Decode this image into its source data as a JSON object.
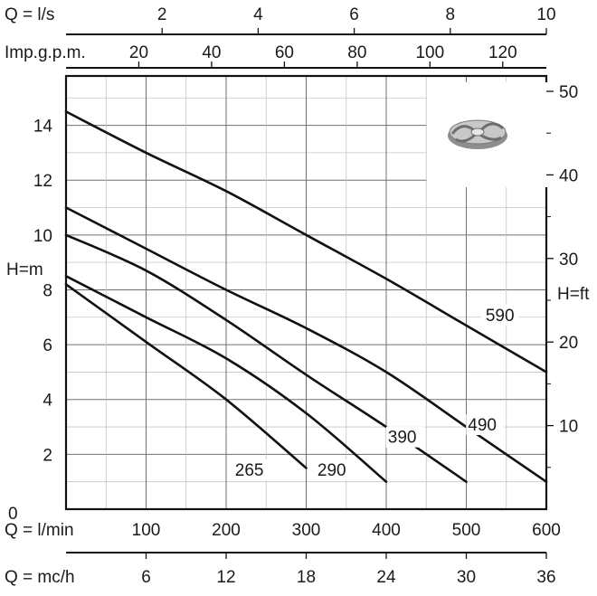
{
  "chart_data": {
    "type": "line",
    "x_unit_label": "Q = l/min",
    "y_left_label": "H=m",
    "y_right_label": "H=ft",
    "xlim": [
      0,
      600
    ],
    "ylim": [
      0,
      15.8
    ],
    "grid": true,
    "top_axes": [
      {
        "label": "Q = l/s",
        "ticks": [
          "2",
          "4",
          "6",
          "8",
          "10"
        ],
        "tick_values": [
          2,
          4,
          6,
          8,
          10
        ],
        "factor_per_l_min": 0.0166667
      },
      {
        "label": "Imp.g.p.m.",
        "ticks": [
          "20",
          "40",
          "60",
          "80",
          "100",
          "120"
        ],
        "tick_values": [
          20,
          40,
          60,
          80,
          100,
          120
        ],
        "factor_per_l_min": 0.219969
      }
    ],
    "bottom_axes": [
      {
        "label": "Q = l/min",
        "ticks": [
          "0",
          "100",
          "200",
          "300",
          "400",
          "500",
          "600"
        ],
        "tick_values": [
          0,
          100,
          200,
          300,
          400,
          500,
          600
        ],
        "factor_per_l_min": 1
      },
      {
        "label": "Q = mc/h",
        "ticks": [
          "6",
          "12",
          "18",
          "24",
          "30",
          "36"
        ],
        "tick_values": [
          6,
          12,
          18,
          24,
          30,
          36
        ],
        "factor_per_l_min": 0.06
      }
    ],
    "y_left_ticks": [
      "0",
      "2",
      "4",
      "6",
      "8",
      "10",
      "12",
      "14"
    ],
    "y_left_tick_values": [
      0,
      2,
      4,
      6,
      8,
      10,
      12,
      14
    ],
    "y_right_ticks": [
      "10",
      "20",
      "30",
      "40",
      "50"
    ],
    "y_right_tick_values": [
      10,
      20,
      30,
      40,
      50
    ],
    "y_right_factor_per_m": 3.28084,
    "series": [
      {
        "name": "590",
        "x": [
          0,
          100,
          200,
          300,
          400,
          500,
          600
        ],
        "y": [
          14.5,
          13.0,
          11.6,
          10.0,
          8.4,
          6.7,
          5.0
        ]
      },
      {
        "name": "490",
        "x": [
          0,
          100,
          200,
          300,
          400,
          500,
          600
        ],
        "y": [
          11.0,
          9.5,
          8.0,
          6.6,
          5.0,
          3.0,
          1.0
        ]
      },
      {
        "name": "390",
        "x": [
          0,
          100,
          200,
          300,
          400,
          500
        ],
        "y": [
          10.0,
          8.7,
          6.9,
          4.9,
          3.0,
          1.0
        ]
      },
      {
        "name": "290",
        "x": [
          0,
          100,
          200,
          300,
          400
        ],
        "y": [
          8.5,
          7.0,
          5.5,
          3.5,
          1.0
        ]
      },
      {
        "name": "265",
        "x": [
          0,
          100,
          200,
          300
        ],
        "y": [
          8.2,
          6.1,
          4.0,
          1.5
        ]
      }
    ]
  }
}
